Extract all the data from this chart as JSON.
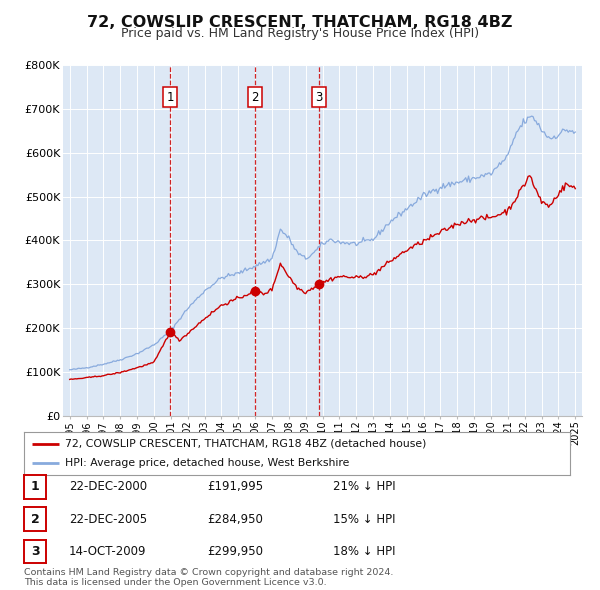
{
  "title": "72, COWSLIP CRESCENT, THATCHAM, RG18 4BZ",
  "subtitle": "Price paid vs. HM Land Registry's House Price Index (HPI)",
  "background_color": "#ffffff",
  "plot_bg_color": "#dde8f5",
  "grid_color": "#ffffff",
  "sale_color": "#cc0000",
  "hpi_color": "#88aadd",
  "sale_label": "72, COWSLIP CRESCENT, THATCHAM, RG18 4BZ (detached house)",
  "hpi_label": "HPI: Average price, detached house, West Berkshire",
  "ylim": [
    0,
    800000
  ],
  "yticks": [
    0,
    100000,
    200000,
    300000,
    400000,
    500000,
    600000,
    700000,
    800000
  ],
  "ytick_labels": [
    "£0",
    "£100K",
    "£200K",
    "£300K",
    "£400K",
    "£500K",
    "£600K",
    "£700K",
    "£800K"
  ],
  "sale_dates": [
    2000.97,
    2005.97,
    2009.79
  ],
  "sale_prices": [
    191995,
    284950,
    299950
  ],
  "sale_numbers": [
    "1",
    "2",
    "3"
  ],
  "vline_dates": [
    2000.97,
    2005.97,
    2009.79
  ],
  "table_rows": [
    [
      "1",
      "22-DEC-2000",
      "£191,995",
      "21% ↓ HPI"
    ],
    [
      "2",
      "22-DEC-2005",
      "£284,950",
      "15% ↓ HPI"
    ],
    [
      "3",
      "14-OCT-2009",
      "£299,950",
      "18% ↓ HPI"
    ]
  ],
  "footnote": "Contains HM Land Registry data © Crown copyright and database right 2024.\nThis data is licensed under the Open Government Licence v3.0.",
  "hpi_anchors": {
    "1995.0": 105000,
    "1996.0": 110000,
    "1997.0": 118000,
    "1998.0": 128000,
    "1999.0": 142000,
    "2000.0": 162000,
    "2001.0": 195000,
    "2002.0": 245000,
    "2003.0": 285000,
    "2004.0": 315000,
    "2005.0": 325000,
    "2006.0": 342000,
    "2007.0": 358000,
    "2007.5": 425000,
    "2008.0": 405000,
    "2008.5": 372000,
    "2009.0": 358000,
    "2009.5": 372000,
    "2010.0": 392000,
    "2010.5": 402000,
    "2011.0": 396000,
    "2012.0": 392000,
    "2013.0": 402000,
    "2014.0": 442000,
    "2015.0": 472000,
    "2016.0": 502000,
    "2017.0": 522000,
    "2018.0": 532000,
    "2019.0": 542000,
    "2020.0": 552000,
    "2021.0": 592000,
    "2021.5": 645000,
    "2022.0": 672000,
    "2022.5": 682000,
    "2023.0": 652000,
    "2023.5": 632000,
    "2024.0": 642000,
    "2024.5": 652000,
    "2025.0": 647000
  },
  "sale_anchors": {
    "1995.0": 83000,
    "1996.0": 87000,
    "1997.0": 92000,
    "1998.0": 99000,
    "1999.0": 110000,
    "2000.0": 122000,
    "2000.97": 191995,
    "2001.5": 172000,
    "2002.0": 188000,
    "2003.0": 222000,
    "2004.0": 252000,
    "2005.0": 268000,
    "2005.97": 284950,
    "2006.5": 278000,
    "2007.0": 288000,
    "2007.5": 348000,
    "2008.0": 318000,
    "2008.5": 292000,
    "2009.0": 282000,
    "2009.79": 299950,
    "2010.5": 312000,
    "2011.0": 318000,
    "2012.0": 315000,
    "2013.0": 322000,
    "2014.0": 352000,
    "2015.0": 378000,
    "2016.0": 398000,
    "2017.0": 418000,
    "2018.0": 438000,
    "2019.0": 448000,
    "2020.0": 452000,
    "2021.0": 468000,
    "2021.5": 498000,
    "2022.0": 528000,
    "2022.3": 552000,
    "2022.5": 528000,
    "2023.0": 488000,
    "2023.5": 478000,
    "2024.0": 508000,
    "2024.5": 528000,
    "2025.0": 518000
  }
}
